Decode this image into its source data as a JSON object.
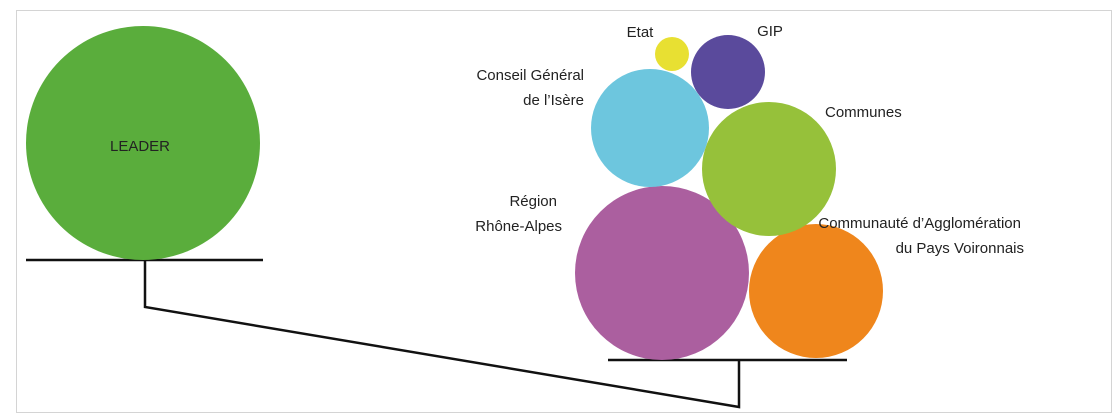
{
  "diagram": {
    "left": {
      "label": "LEADER",
      "color": "#5aad3c"
    },
    "right": [
      {
        "id": "etat",
        "lines": [
          "Etat"
        ],
        "color": "#e8e032"
      },
      {
        "id": "gip",
        "lines": [
          "GIP"
        ],
        "color": "#5a4a9c"
      },
      {
        "id": "conseil",
        "lines": [
          "Conseil Général",
          "de l’Isère"
        ],
        "color": "#6dc6de"
      },
      {
        "id": "communes",
        "lines": [
          "Communes"
        ],
        "color": "#96c13a"
      },
      {
        "id": "region",
        "lines": [
          "Région",
          "Rhône-Alpes"
        ],
        "color": "#ab5f9f"
      },
      {
        "id": "communaute",
        "lines": [
          "Communauté d’Agglomération",
          "du Pays Voironnais"
        ],
        "color": "#ef861c"
      }
    ],
    "line_color": "#111111"
  }
}
